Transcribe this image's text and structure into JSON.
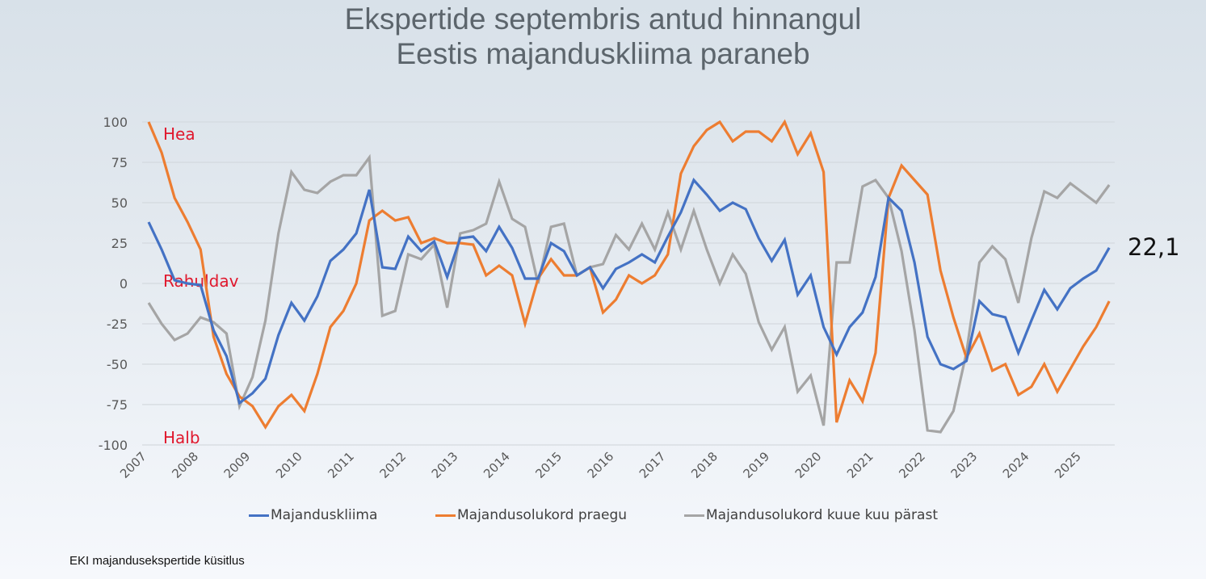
{
  "title": {
    "line1": "Ekspertide septembris antud hinnangul",
    "line2": "Eestis majanduskliima paraneb"
  },
  "footer": "EKI majandusekspertide küsitlus",
  "end_label": "22,1",
  "chart_data": {
    "type": "line",
    "title": "Ekspertide septembris antud hinnangul Eestis majanduskliima paraneb",
    "xlabel": "",
    "ylabel": "",
    "ylim": [
      -100,
      100
    ],
    "yticks": [
      100,
      75,
      50,
      25,
      0,
      -25,
      -50,
      -75,
      -100
    ],
    "ytick_labels": [
      "100",
      "75",
      "50",
      "25",
      "0",
      "-25",
      "-50",
      "-75",
      "-100"
    ],
    "xtick_labels": [
      "2007",
      "2008",
      "2009",
      "2010",
      "2011",
      "2012",
      "2013",
      "2014",
      "2015",
      "2016",
      "2017",
      "2018",
      "2019",
      "2020",
      "2021",
      "2022",
      "2023",
      "2024",
      "2025"
    ],
    "x_start": "2007 Q1",
    "x_frequency": "quarterly",
    "grid": true,
    "legend_position": "bottom",
    "annotations": [
      {
        "text": "Hea",
        "y": 93,
        "color": "#e0182d"
      },
      {
        "text": "Rahuldav",
        "y": 2,
        "color": "#e0182d"
      },
      {
        "text": "Halb",
        "y": -95,
        "color": "#e0182d"
      }
    ],
    "series": [
      {
        "name": "Majanduskliima",
        "color": "#4472c4",
        "values": [
          38,
          21,
          2,
          0,
          -1,
          -29,
          -45,
          -74,
          -68,
          -59,
          -32,
          -12,
          -23,
          -8,
          14,
          21,
          31,
          58,
          10,
          9,
          29,
          20,
          26,
          4,
          28,
          29,
          20,
          35,
          22,
          3,
          3,
          25,
          20,
          5,
          10,
          -3,
          9,
          13,
          18,
          13,
          29,
          44,
          64,
          55,
          45,
          50,
          46,
          28,
          14,
          27,
          -7,
          5,
          -27,
          -44,
          -27,
          -18,
          4,
          53,
          45,
          13,
          -33,
          -50,
          -53,
          -48,
          -11,
          -19,
          -21,
          -43,
          -23,
          -4,
          -16,
          -3,
          3,
          8,
          22.1
        ]
      },
      {
        "name": "Majandusolukord praegu",
        "color": "#ed7d31",
        "values": [
          100,
          81,
          53,
          38,
          21,
          -33,
          -56,
          -70,
          -76,
          -89,
          -76,
          -69,
          -79,
          -56,
          -27,
          -17,
          0,
          39,
          45,
          39,
          41,
          25,
          28,
          25,
          25,
          24,
          5,
          11,
          5,
          -25,
          3,
          15,
          5,
          5,
          10,
          -18,
          -10,
          5,
          0,
          5,
          18,
          68,
          85,
          95,
          100,
          88,
          94,
          94,
          88,
          100,
          80,
          93,
          69,
          -86,
          -60,
          -73,
          -43,
          53,
          73,
          64,
          55,
          8,
          -21,
          -46,
          -31,
          -54,
          -50,
          -69,
          -64,
          -50,
          -67,
          -53,
          -39,
          -27,
          -11
        ]
      },
      {
        "name": "Majandusolukord kuue kuu pärast",
        "color": "#a5a5a5",
        "values": [
          -12,
          -25,
          -35,
          -31,
          -21,
          -24,
          -31,
          -76,
          -58,
          -23,
          31,
          69,
          58,
          56,
          63,
          67,
          67,
          78,
          -20,
          -17,
          18,
          15,
          24,
          -15,
          31,
          33,
          37,
          63,
          40,
          35,
          0,
          35,
          37,
          5,
          10,
          12,
          30,
          21,
          37,
          21,
          44,
          21,
          45,
          21,
          0,
          18,
          6,
          -24,
          -41,
          -27,
          -67,
          -57,
          -88,
          13,
          13,
          60,
          64,
          53,
          20,
          -29,
          -91,
          -92,
          -79,
          -43,
          13,
          23,
          15,
          -12,
          28,
          57,
          53,
          62,
          56,
          50,
          61
        ]
      }
    ]
  }
}
